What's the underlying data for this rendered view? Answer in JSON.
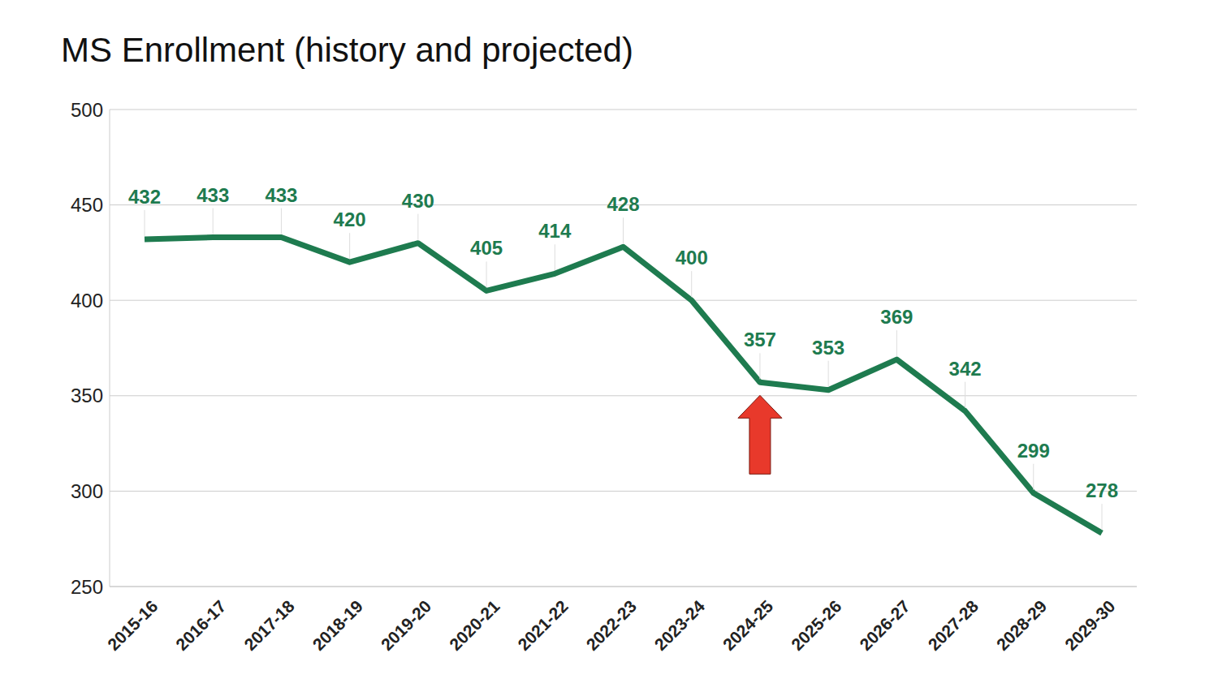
{
  "chart_data": {
    "type": "line",
    "title": "MS Enrollment (history and projected)",
    "categories": [
      "2015-16",
      "2016-17",
      "2017-18",
      "2018-19",
      "2019-20",
      "2020-21",
      "2021-22",
      "2022-23",
      "2023-24",
      "2024-25",
      "2025-26",
      "2026-27",
      "2027-28",
      "2028-29",
      "2029-30"
    ],
    "values": [
      432,
      433,
      433,
      420,
      430,
      405,
      414,
      428,
      400,
      357,
      353,
      369,
      342,
      299,
      278
    ],
    "color": "#1e7b4f",
    "ylim": [
      250,
      500
    ],
    "yticks": [
      250,
      300,
      350,
      400,
      450,
      500
    ],
    "grid": true,
    "data_labels": true
  }
}
